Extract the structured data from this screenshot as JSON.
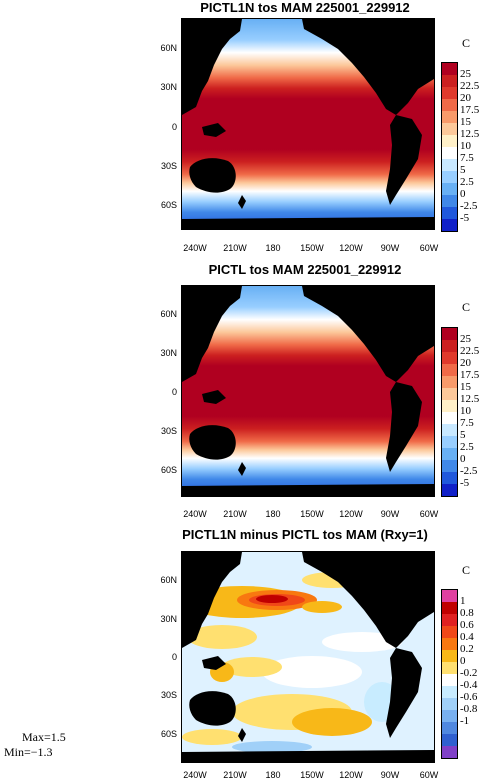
{
  "chart_data": [
    {
      "type": "heatmap",
      "title": "PICTL1N tos MAM 225001_229912",
      "units": "C",
      "lat_labels": [
        "60N",
        "30N",
        "0",
        "30S",
        "60S"
      ],
      "lon_labels": [
        "240W",
        "210W",
        "180",
        "150W",
        "120W",
        "90W",
        "60W"
      ],
      "colorbar_levels": [
        "25",
        "22.5",
        "20",
        "17.5",
        "15",
        "12.5",
        "10",
        "7.5",
        "5",
        "2.5",
        "0",
        "-2.5",
        "-5"
      ],
      "colorbar_colors": [
        "#b00020",
        "#cc2020",
        "#e03a2c",
        "#f06a48",
        "#f89a6a",
        "#fcc89a",
        "#fff0c8",
        "#ffffff",
        "#c8e8ff",
        "#98ceff",
        "#68b0f4",
        "#4088e8",
        "#2058dc",
        "#1020c8"
      ]
    },
    {
      "type": "heatmap",
      "title": "PICTL tos MAM 225001_229912",
      "units": "C",
      "lat_labels": [
        "60N",
        "30N",
        "0",
        "30S",
        "60S"
      ],
      "lon_labels": [
        "240W",
        "210W",
        "180",
        "150W",
        "120W",
        "90W",
        "60W"
      ],
      "colorbar_levels": [
        "25",
        "22.5",
        "20",
        "17.5",
        "15",
        "12.5",
        "10",
        "7.5",
        "5",
        "2.5",
        "0",
        "-2.5",
        "-5"
      ],
      "colorbar_colors": [
        "#b00020",
        "#cc2020",
        "#e03a2c",
        "#f06a48",
        "#f89a6a",
        "#fcc89a",
        "#fff0c8",
        "#ffffff",
        "#c8e8ff",
        "#98ceff",
        "#68b0f4",
        "#4088e8",
        "#2058dc",
        "#1020c8"
      ]
    },
    {
      "type": "heatmap",
      "title": "PICTL1N minus PICTL tos MAM (Rxy=1)",
      "units": "C",
      "lat_labels": [
        "60N",
        "30N",
        "0",
        "30S",
        "60S"
      ],
      "lon_labels": [
        "240W",
        "210W",
        "180",
        "150W",
        "120W",
        "90W",
        "60W"
      ],
      "colorbar_levels": [
        "1",
        "0.8",
        "0.6",
        "0.4",
        "0.2",
        "0",
        "-0.2",
        "-0.4",
        "-0.6",
        "-0.8",
        "-1"
      ],
      "colorbar_colors": [
        "#e040a0",
        "#c00000",
        "#e02020",
        "#f04818",
        "#f87810",
        "#f8b818",
        "#ffe070",
        "#ffffff",
        "#c8ecff",
        "#a0d0f8",
        "#78b0f0",
        "#5088e0",
        "#3060d0",
        "#8040c8"
      ],
      "stats": {
        "max": "Max=1.5",
        "min": "Min=−1.3"
      }
    }
  ]
}
